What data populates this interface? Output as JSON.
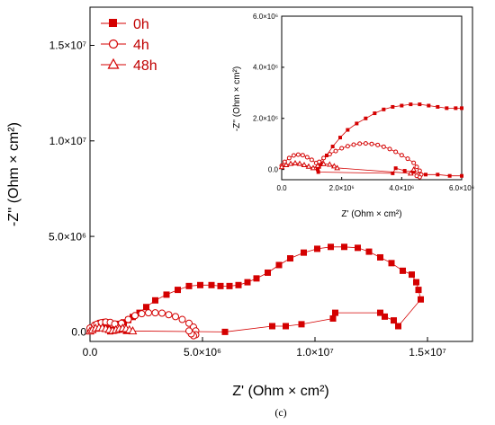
{
  "caption": "(c)",
  "colors": {
    "series": "#d40000",
    "axis": "#000000",
    "background": "#ffffff"
  },
  "chart_data": [
    {
      "type": "scatter",
      "name": "main",
      "xlabel": "Z' (Ohm × cm²)",
      "ylabel": "-Z'' (Ohm × cm²)",
      "xlim": [
        0,
        17000000
      ],
      "ylim": [
        -500000,
        17000000
      ],
      "x_ticks": [
        {
          "value": 0,
          "label": "0.0"
        },
        {
          "value": 5000000,
          "label": "5.0×10⁶"
        },
        {
          "value": 10000000,
          "label": "1.0×10⁷"
        },
        {
          "value": 15000000,
          "label": "1.5×10⁷"
        }
      ],
      "y_ticks": [
        {
          "value": 0,
          "label": "0.0"
        },
        {
          "value": 5000000,
          "label": "5.0×10⁶"
        },
        {
          "value": 10000000,
          "label": "1.0×10⁷"
        },
        {
          "value": 15000000,
          "label": "1.5×10⁷"
        }
      ],
      "grid": false,
      "legend_position": "top-left",
      "series": [
        {
          "name": "0h",
          "marker": "square-filled",
          "x": [
            0,
            100000,
            200000,
            350000,
            500000,
            700000,
            900000,
            1100000,
            1300000,
            1500000,
            1700000,
            1900000,
            2200000,
            2500000,
            2900000,
            3400000,
            3900000,
            4400000,
            4900000,
            5400000,
            5800000,
            6200000,
            6600000,
            7000000,
            7400000,
            7900000,
            8400000,
            8900000,
            9500000,
            10100000,
            10700000,
            11300000,
            11900000,
            12400000,
            12900000,
            13400000,
            13900000,
            14300000,
            14500000,
            14600000,
            14700000,
            13700000,
            13500000,
            13100000,
            12900000,
            10900000,
            10800000,
            9400000,
            8700000,
            8100000,
            6000000,
            1600000,
            1300000,
            1100000,
            900000
          ],
          "y": [
            100000,
            150000,
            200000,
            250000,
            280000,
            300000,
            320000,
            360000,
            420000,
            500000,
            620000,
            780000,
            1000000,
            1300000,
            1650000,
            1950000,
            2200000,
            2400000,
            2450000,
            2450000,
            2400000,
            2400000,
            2450000,
            2600000,
            2800000,
            3100000,
            3500000,
            3850000,
            4150000,
            4350000,
            4450000,
            4450000,
            4400000,
            4200000,
            3900000,
            3600000,
            3200000,
            3000000,
            2600000,
            2200000,
            1700000,
            300000,
            600000,
            800000,
            1000000,
            1000000,
            700000,
            400000,
            300000,
            300000,
            0,
            50000,
            120000,
            80000,
            30000
          ]
        },
        {
          "name": "4h",
          "marker": "circle-open",
          "x": [
            0,
            200000,
            400000,
            600000,
            800000,
            1000000,
            1200000,
            1400000,
            1700000,
            2000000,
            2300000,
            2600000,
            2900000,
            3200000,
            3500000,
            3800000,
            4100000,
            4400000,
            4600000,
            4700000,
            4700000,
            4600000,
            4500000,
            4400000
          ],
          "y": [
            200000,
            350000,
            450000,
            500000,
            480000,
            400000,
            300000,
            450000,
            650000,
            850000,
            950000,
            1000000,
            1000000,
            980000,
            900000,
            800000,
            650000,
            450000,
            250000,
            50000,
            -150000,
            -200000,
            -100000,
            50000
          ],
          "x2": [
            300000,
            500000,
            700000,
            900000,
            1100000
          ],
          "y2": [
            400000,
            480000,
            520000,
            500000,
            420000
          ]
        },
        {
          "name": "48h",
          "marker": "triangle-open",
          "x": [
            0,
            100000,
            250000,
            400000,
            550000,
            700000,
            850000,
            1000000,
            1150000,
            1300000,
            1450000,
            1600000,
            1750000,
            1900000
          ],
          "y": [
            50000,
            120000,
            200000,
            230000,
            220000,
            180000,
            130000,
            80000,
            120000,
            180000,
            200000,
            180000,
            120000,
            60000
          ]
        }
      ]
    },
    {
      "type": "scatter",
      "name": "inset",
      "xlabel": "Z' (Ohm × cm²)",
      "ylabel": "-Z'' (Ohm × cm²)",
      "xlim": [
        0,
        6000000
      ],
      "ylim": [
        -400000,
        6000000
      ],
      "x_ticks": [
        {
          "value": 0,
          "label": "0.0"
        },
        {
          "value": 2000000,
          "label": "2.0×10⁶"
        },
        {
          "value": 4000000,
          "label": "4.0×10⁶"
        },
        {
          "value": 6000000,
          "label": "6.0×10⁶"
        }
      ],
      "y_ticks": [
        {
          "value": 0,
          "label": "0.0"
        },
        {
          "value": 2000000,
          "label": "2.0×10⁶"
        },
        {
          "value": 4000000,
          "label": "4.0×10⁶"
        },
        {
          "value": 6000000,
          "label": "6.0×10⁶"
        }
      ],
      "grid": false,
      "series": [
        {
          "name": "0h",
          "marker": "square-filled",
          "x": [
            1300000,
            1500000,
            1700000,
            1950000,
            2200000,
            2500000,
            2800000,
            3100000,
            3400000,
            3700000,
            4000000,
            4300000,
            4600000,
            4900000,
            5200000,
            5500000,
            5800000,
            6000000
          ],
          "y": [
            200000,
            550000,
            900000,
            1250000,
            1550000,
            1800000,
            2000000,
            2200000,
            2350000,
            2450000,
            2500000,
            2550000,
            2550000,
            2500000,
            2450000,
            2400000,
            2400000,
            2400000
          ],
          "x2": [
            1200000,
            1300000,
            1250000,
            1220000,
            3700000,
            3800000,
            4100000,
            4400000,
            4800000,
            5200000,
            5600000,
            6000000
          ],
          "y2": [
            0,
            250000,
            100000,
            -100000,
            -150000,
            50000,
            -50000,
            -100000,
            -200000,
            -200000,
            -250000,
            -250000
          ]
        },
        {
          "name": "4h",
          "marker": "circle-open",
          "x": [
            0,
            100000,
            250000,
            400000,
            550000,
            700000,
            850000,
            1000000,
            1150000,
            1250000,
            1400000,
            1600000,
            1800000,
            2000000,
            2200000,
            2400000,
            2600000,
            2800000,
            3000000,
            3200000,
            3400000,
            3600000,
            3800000,
            4000000,
            4200000,
            4400000,
            4500000,
            4600000,
            4650000,
            4600000,
            4500000
          ],
          "y": [
            150000,
            300000,
            450000,
            550000,
            580000,
            560000,
            480000,
            380000,
            250000,
            300000,
            450000,
            600000,
            720000,
            830000,
            910000,
            970000,
            1010000,
            1020000,
            1000000,
            960000,
            890000,
            800000,
            690000,
            560000,
            420000,
            260000,
            100000,
            -50000,
            -200000,
            -300000,
            -250000
          ]
        },
        {
          "name": "48h",
          "marker": "triangle-open",
          "x": [
            0,
            150000,
            300000,
            450000,
            600000,
            750000,
            900000,
            1050000,
            1200000,
            1400000,
            1600000,
            1750000,
            1850000,
            4300000,
            4400000
          ],
          "y": [
            100000,
            180000,
            230000,
            250000,
            230000,
            180000,
            120000,
            60000,
            150000,
            220000,
            200000,
            130000,
            60000,
            -150000,
            0
          ]
        }
      ]
    }
  ]
}
